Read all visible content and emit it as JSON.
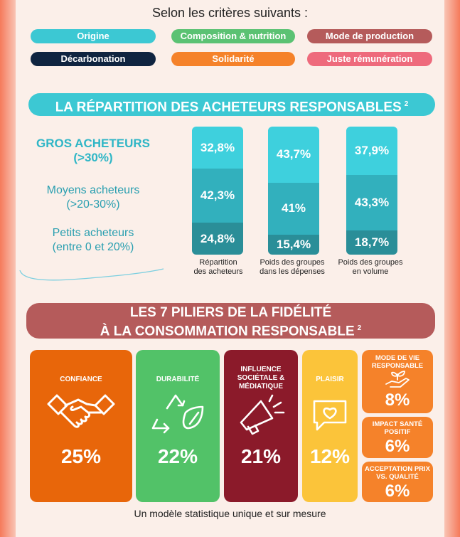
{
  "intro": "Selon les critères suivants :",
  "criteria": [
    {
      "label": "Origine",
      "color": "#3cc8d3"
    },
    {
      "label": "Composition & nutrition",
      "color": "#5bc273"
    },
    {
      "label": "Mode de production",
      "color": "#b55b5b"
    },
    {
      "label": "Décarbonation",
      "color": "#0f2440"
    },
    {
      "label": "Solidarité",
      "color": "#f5822a"
    },
    {
      "label": "Juste rémunération",
      "color": "#ee6a7c"
    }
  ],
  "section1": {
    "title": "LA RÉPARTITION DES ACHETEURS RESPONSABLES",
    "note": "2",
    "color": "#3cc8d3"
  },
  "chart_data": {
    "type": "bar",
    "stacked": true,
    "categories": [
      "Répartition des acheteurs",
      "Poids des groupes dans les dépenses",
      "Poids des groupes en volume"
    ],
    "series": [
      {
        "name": "GROS ACHETEURS (>30%)",
        "values": [
          32.8,
          43.7,
          37.9
        ],
        "labels": [
          "32,8%",
          "43,7%",
          "37,9%"
        ],
        "color": "#3ed0dd"
      },
      {
        "name": "Moyens acheteurs (>20-30%)",
        "values": [
          42.3,
          41.0,
          43.3
        ],
        "labels": [
          "42,3%",
          "41%",
          "43,3%"
        ],
        "color": "#32b0bd"
      },
      {
        "name": "Petits acheteurs (entre 0 et 20%)",
        "values": [
          24.8,
          15.4,
          18.7
        ],
        "labels": [
          "24,8%",
          "15,4%",
          "18,7%"
        ],
        "color": "#2a8e98"
      }
    ]
  },
  "rowlabels": [
    {
      "line1": "GROS ACHETEURS",
      "line2": "(>30%)"
    },
    {
      "line1": "Moyens acheteurs",
      "line2": "(>20-30%)"
    },
    {
      "line1": "Petits acheteurs",
      "line2": "(entre 0 et 20%)"
    }
  ],
  "captions": [
    {
      "line1": "Répartition",
      "line2": "des acheteurs"
    },
    {
      "line1": "Poids des groupes",
      "line2": "dans les dépenses"
    },
    {
      "line1": "Poids des groupes",
      "line2": "en volume"
    }
  ],
  "section2": {
    "line1": "LES 7 PILIERS DE LA FIDÉLITÉ",
    "line2": "À LA CONSOMMATION RESPONSABLE",
    "note": "2",
    "color": "#b55b5b"
  },
  "pillars": [
    {
      "label": "CONFIANCE",
      "value": "25%",
      "color": "#e8660a",
      "icon": "handshake-icon"
    },
    {
      "label": "DURABILITÉ",
      "value": "22%",
      "color": "#52c268",
      "icon": "recycle-leaf-icon"
    },
    {
      "label": "INFLUENCE SOCIÉTALE & MÉDIATIQUE",
      "value": "21%",
      "color": "#8b1a2a",
      "icon": "megaphone-icon"
    },
    {
      "label": "PLAISIR",
      "value": "12%",
      "color": "#fbc43a",
      "icon": "heart-message-icon"
    },
    {
      "label": "MODE DE VIE RESPONSABLE",
      "value": "8%",
      "color": "#f5822a",
      "icon": "hand-plant-icon"
    },
    {
      "label": "IMPACT SANTÉ POSITIF",
      "value": "6%",
      "color": "#f5822a"
    },
    {
      "label": "ACCEPTATION PRIX VS. QUALITÉ",
      "value": "6%",
      "color": "#f5822a"
    }
  ],
  "footer": "Un modèle statistique unique et sur mesure"
}
